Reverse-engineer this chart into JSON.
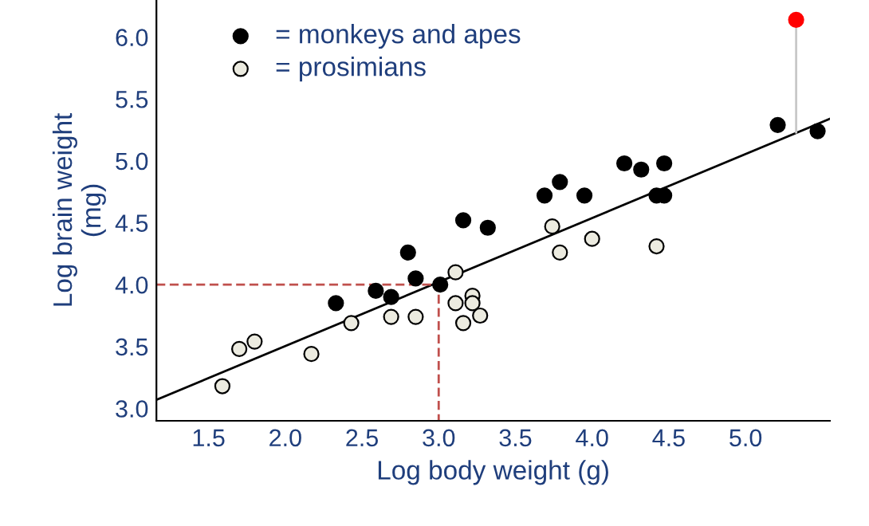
{
  "chart_data": {
    "type": "scatter",
    "xlabel": "Log body weight (g)",
    "ylabel": "Log brain weight\n(mg)",
    "xlim": [
      1.16,
      5.55
    ],
    "ylim": [
      2.9,
      6.3
    ],
    "xticks": [
      1.5,
      {
        "value": 2,
        "label": "2.0"
      },
      2.5,
      {
        "value": 3,
        "label": "3.0"
      },
      3.5,
      {
        "value": 4,
        "label": "4.0"
      },
      4.5,
      {
        "value": 5,
        "label": "5.0"
      }
    ],
    "yticks": [
      {
        "value": 3,
        "label": "3.0"
      },
      3.5,
      {
        "value": 4,
        "label": "4.0"
      },
      4.5,
      {
        "value": 5,
        "label": "5.0"
      },
      5.5,
      {
        "value": 6,
        "label": "6.0"
      }
    ],
    "grid": false,
    "legend": "top left",
    "series": [
      {
        "name": "= monkeys and apes",
        "marker": "circle",
        "color": "#000000",
        "x": [
          2.33,
          2.59,
          2.69,
          2.8,
          2.85,
          3.01,
          3.16,
          3.32,
          3.69,
          3.79,
          3.95,
          4.21,
          4.32,
          4.47,
          4.42,
          4.47,
          5.21,
          5.47
        ],
        "values": [
          3.85,
          3.95,
          3.9,
          4.26,
          4.05,
          4.0,
          4.52,
          4.46,
          4.72,
          4.83,
          4.72,
          4.98,
          4.93,
          4.98,
          4.72,
          4.72,
          5.29,
          5.24
        ]
      },
      {
        "name": "= prosimians",
        "marker": "circle",
        "color": "#ecebe0",
        "x": [
          1.59,
          1.7,
          1.8,
          2.17,
          2.43,
          2.69,
          2.85,
          3.11,
          3.11,
          3.16,
          3.22,
          3.22,
          3.27,
          3.74,
          3.79,
          4.0,
          4.42
        ],
        "values": [
          3.18,
          3.48,
          3.54,
          3.44,
          3.69,
          3.74,
          3.74,
          4.1,
          3.85,
          3.69,
          3.91,
          3.85,
          3.75,
          4.47,
          4.26,
          4.37,
          4.31
        ]
      },
      {
        "type": "line",
        "color": "#000000",
        "line_style": "solid",
        "x": [
          1.16,
          5.55
        ],
        "values": [
          3.07,
          5.34
        ]
      },
      {
        "type": "line",
        "color": "#c0504d",
        "line_style": "dashed",
        "x": [
          1.16,
          3.0,
          3.0
        ],
        "values": [
          4.0,
          4.0,
          2.9
        ]
      },
      {
        "type": "line",
        "color": "#c8c8c8",
        "line_style": "solid",
        "x": [
          5.33,
          5.33
        ],
        "values": [
          6.14,
          5.23
        ]
      },
      {
        "marker": "circle",
        "color": "#ff0000",
        "x": [
          5.33
        ],
        "values": [
          6.14
        ]
      }
    ]
  }
}
